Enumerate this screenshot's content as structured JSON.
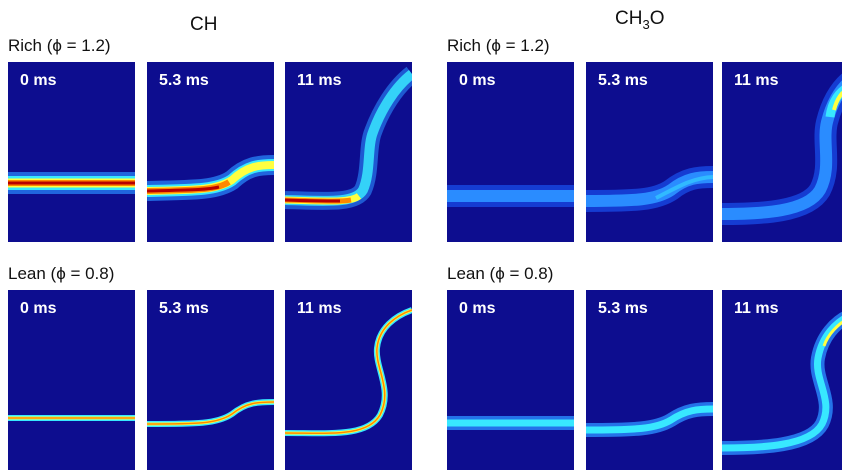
{
  "figure": {
    "columns": [
      {
        "id": "ch",
        "title_main": "CH",
        "title_sub1": "",
        "title_mid": "",
        "title_sub2": ""
      },
      {
        "id": "ch3o",
        "title_main": "CH",
        "title_sub1": "3",
        "title_mid": "O",
        "title_sub2": ""
      }
    ],
    "rows": [
      {
        "id": "rich",
        "label": "Rich (ϕ = 1.2)"
      },
      {
        "id": "lean",
        "label": "Lean (ϕ = 0.8)"
      }
    ],
    "times": [
      "0 ms",
      "5.3 ms",
      "11 ms"
    ],
    "colors": {
      "background": "#0d0d8f",
      "red": "#b80000",
      "orange": "#ff8800",
      "yellow": "#ffff40",
      "cyan": "#38e8ff",
      "light_blue": "#2a8cff"
    }
  }
}
